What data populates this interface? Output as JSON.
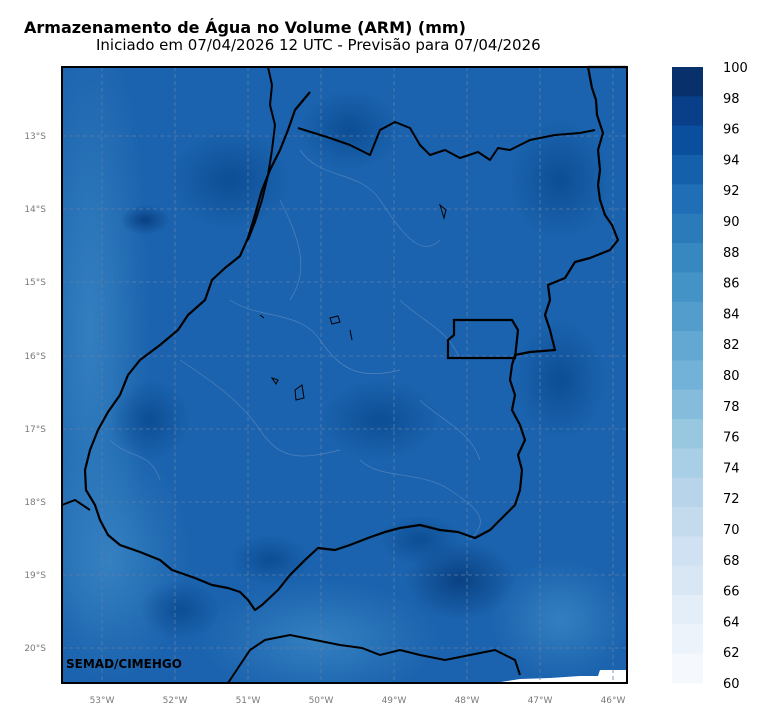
{
  "header": {
    "title": "Armazenamento de Água no Volume (ARM) (mm)",
    "subtitle": "Iniciado em 07/04/2026 12 UTC - Previsão para 07/04/2026"
  },
  "map": {
    "credit": "SEMAD/CIMEHGO",
    "lat_ticks": [
      "13°S",
      "14°S",
      "15°S",
      "16°S",
      "17°S",
      "18°S",
      "19°S",
      "20°S"
    ],
    "lon_ticks": [
      "53°W",
      "52°W",
      "51°W",
      "50°W",
      "49°W",
      "48°W",
      "47°W",
      "46°W"
    ],
    "gridlines": true
  },
  "colorbar": {
    "labels": [
      "100",
      "98",
      "96",
      "94",
      "92",
      "90",
      "88",
      "86",
      "84",
      "82",
      "80",
      "78",
      "76",
      "74",
      "72",
      "70",
      "68",
      "66",
      "64",
      "62",
      "60"
    ],
    "colors": [
      "#08306b",
      "#083f88",
      "#0a4f9e",
      "#1460ab",
      "#1f6eb6",
      "#2b7bba",
      "#3787c0",
      "#4493c7",
      "#529dcc",
      "#62a8d2",
      "#73b2d8",
      "#85bcdc",
      "#98c7e0",
      "#a8cfe5",
      "#b7d4ea",
      "#c4dbee",
      "#cfe1f2",
      "#d9e7f5",
      "#e3eef8",
      "#ecf3fa",
      "#f5f9fe"
    ]
  }
}
